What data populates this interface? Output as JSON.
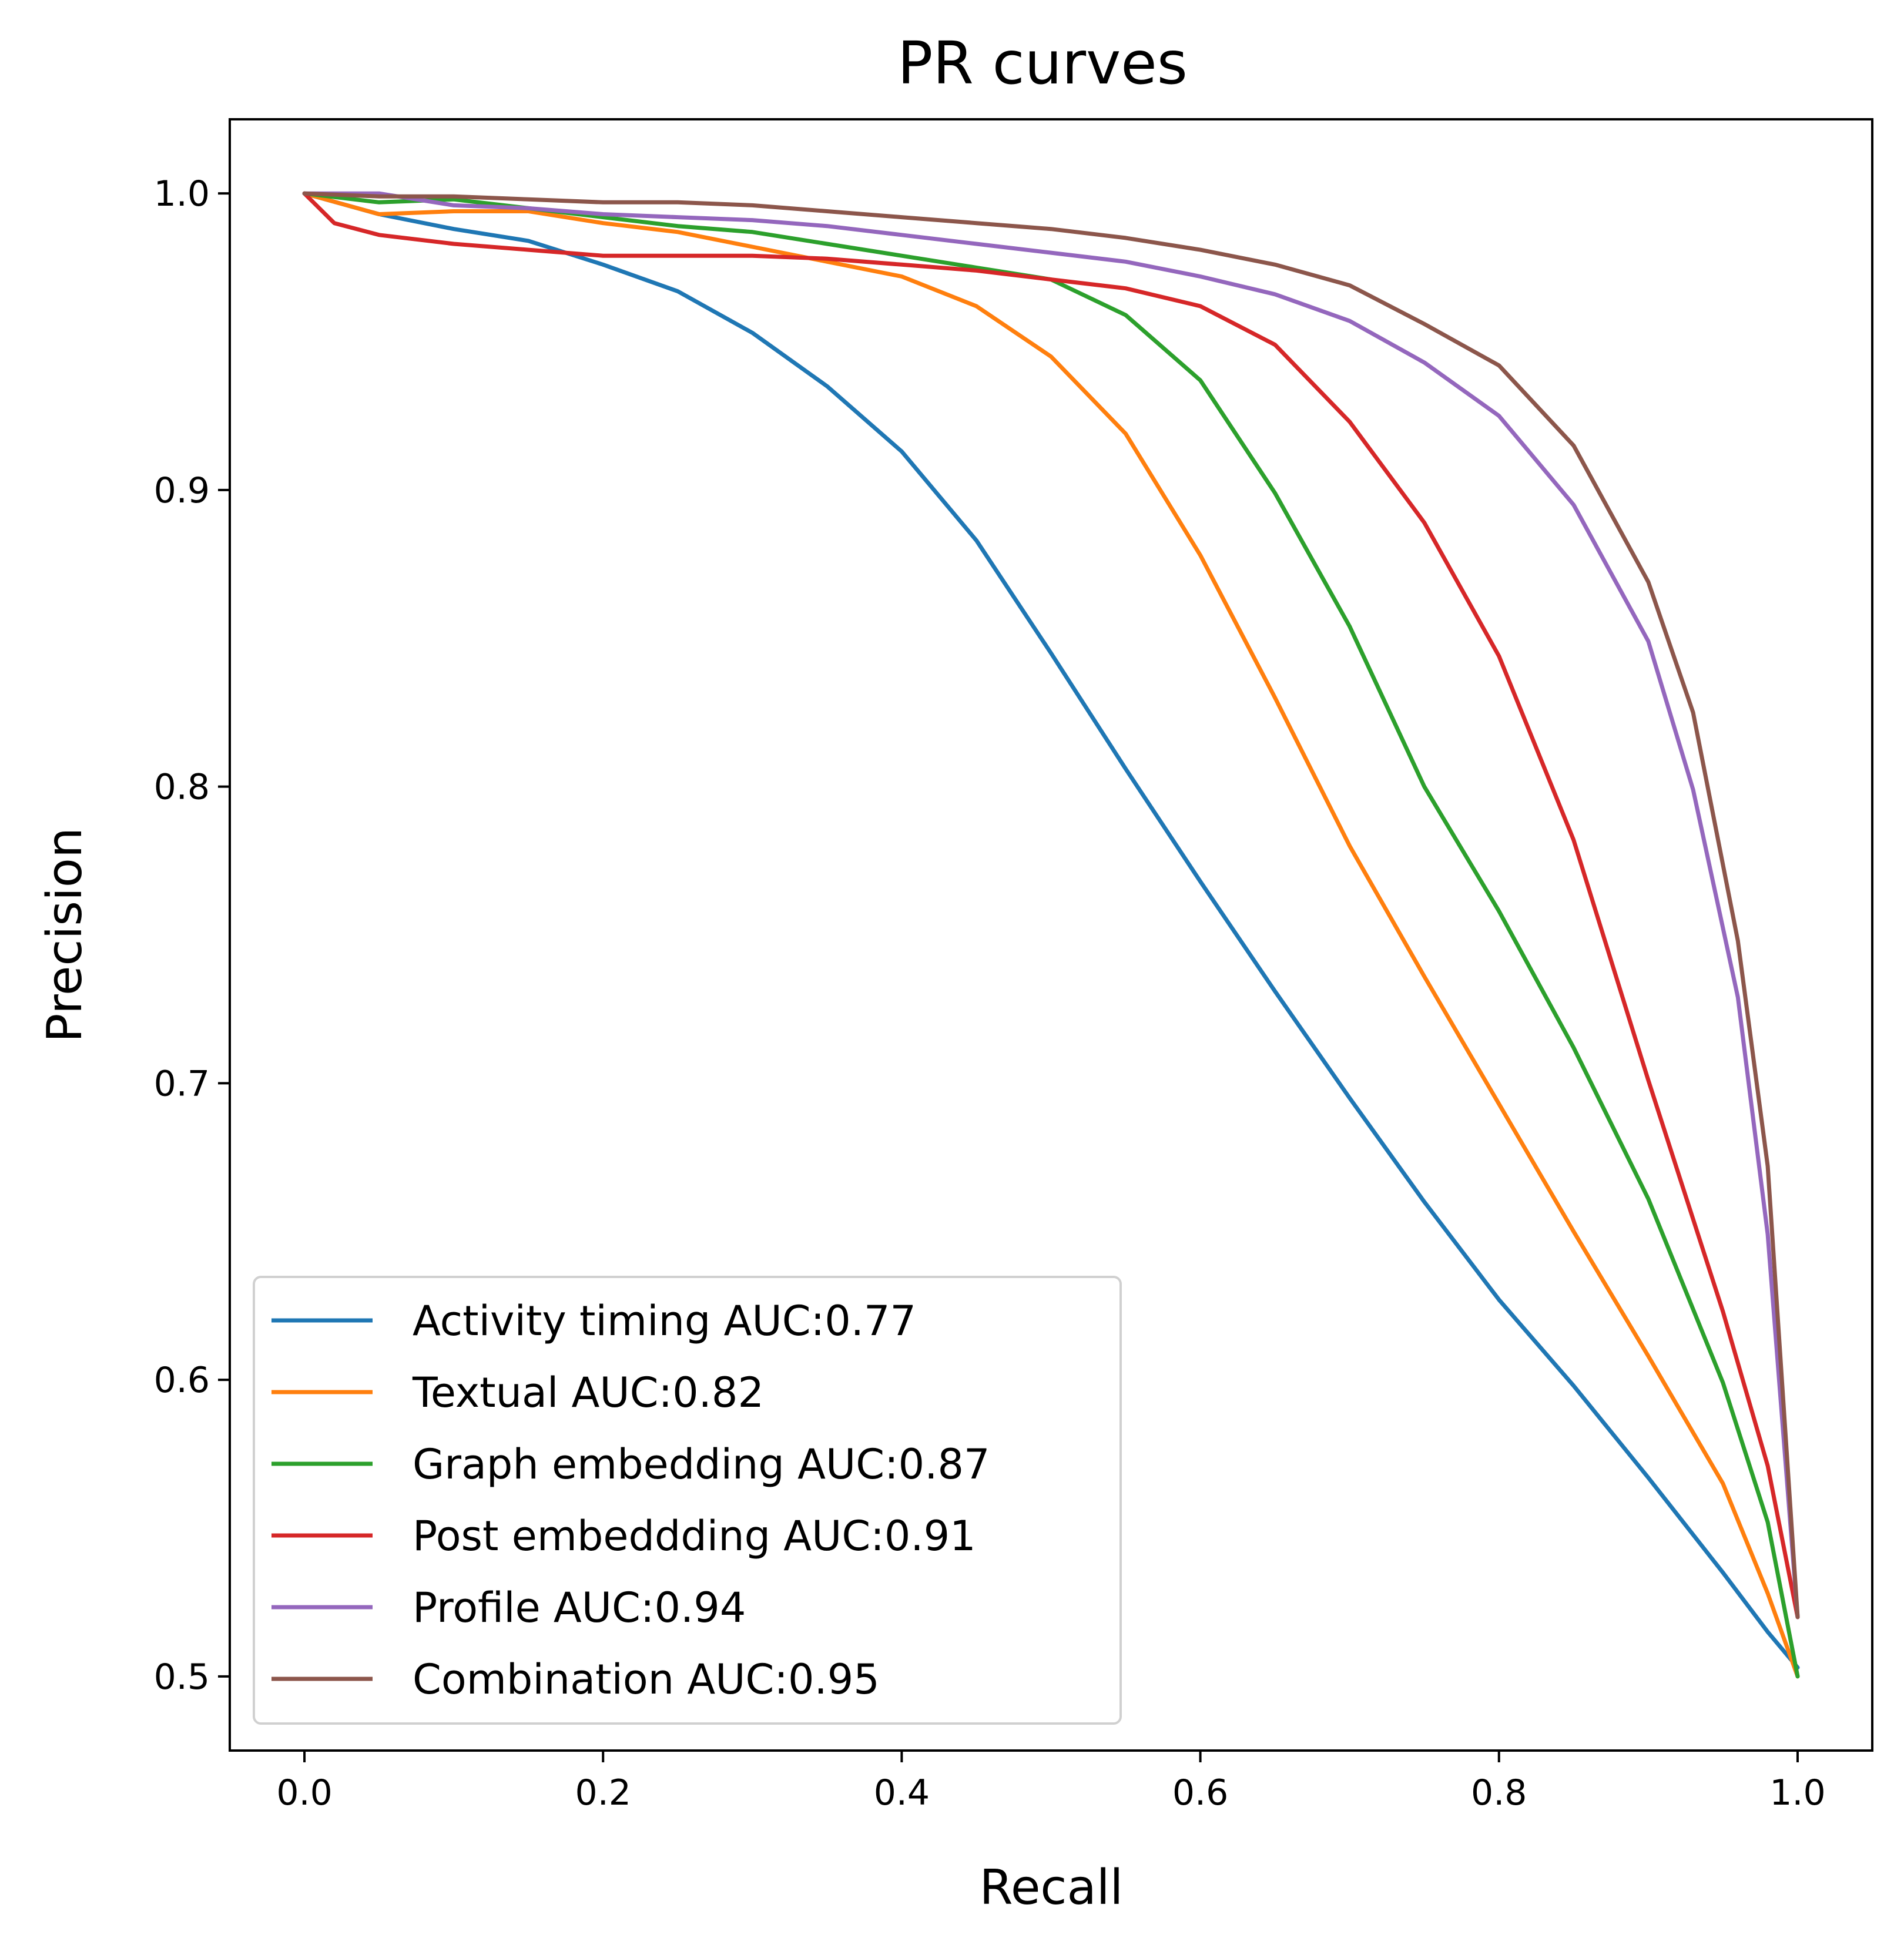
{
  "chart_data": {
    "type": "line",
    "title": "PR curves",
    "xlabel": "Recall",
    "ylabel": "Precision",
    "xlim": [
      -0.05,
      1.05
    ],
    "ylim": [
      0.475,
      1.025
    ],
    "xticks": [
      0.0,
      0.2,
      0.4,
      0.6,
      0.8,
      1.0
    ],
    "xtick_labels": [
      "0.0",
      "0.2",
      "0.4",
      "0.6",
      "0.8",
      "1.0"
    ],
    "yticks": [
      0.5,
      0.6,
      0.7,
      0.8,
      0.9,
      1.0
    ],
    "ytick_labels": [
      "0.5",
      "0.6",
      "0.7",
      "0.8",
      "0.9",
      "1.0"
    ],
    "grid": false,
    "legend_position": "lower-left",
    "series": [
      {
        "name": "Activity timing AUC:0.77",
        "color": "#1f77b4",
        "x": [
          0.0,
          0.05,
          0.1,
          0.15,
          0.2,
          0.25,
          0.3,
          0.35,
          0.4,
          0.45,
          0.5,
          0.55,
          0.6,
          0.65,
          0.7,
          0.75,
          0.8,
          0.85,
          0.9,
          0.95,
          0.98,
          1.0
        ],
        "y": [
          1.0,
          0.993,
          0.988,
          0.984,
          0.976,
          0.967,
          0.953,
          0.935,
          0.913,
          0.883,
          0.845,
          0.806,
          0.768,
          0.731,
          0.695,
          0.66,
          0.627,
          0.598,
          0.567,
          0.535,
          0.515,
          0.503
        ]
      },
      {
        "name": "Textual AUC:0.82",
        "color": "#ff7f0e",
        "x": [
          0.0,
          0.05,
          0.1,
          0.15,
          0.2,
          0.25,
          0.3,
          0.35,
          0.4,
          0.45,
          0.5,
          0.55,
          0.6,
          0.65,
          0.7,
          0.75,
          0.8,
          0.85,
          0.9,
          0.95,
          0.98,
          1.0
        ],
        "y": [
          1.0,
          0.993,
          0.994,
          0.994,
          0.99,
          0.987,
          0.982,
          0.977,
          0.972,
          0.962,
          0.945,
          0.919,
          0.878,
          0.83,
          0.78,
          0.736,
          0.693,
          0.65,
          0.608,
          0.565,
          0.528,
          0.5
        ]
      },
      {
        "name": "Graph embedding AUC:0.87",
        "color": "#2ca02c",
        "x": [
          0.0,
          0.05,
          0.1,
          0.15,
          0.2,
          0.25,
          0.3,
          0.35,
          0.4,
          0.45,
          0.5,
          0.55,
          0.6,
          0.65,
          0.7,
          0.75,
          0.8,
          0.85,
          0.9,
          0.95,
          0.98,
          1.0
        ],
        "y": [
          1.0,
          0.997,
          0.998,
          0.995,
          0.992,
          0.989,
          0.987,
          0.983,
          0.979,
          0.975,
          0.971,
          0.959,
          0.937,
          0.899,
          0.854,
          0.8,
          0.758,
          0.712,
          0.661,
          0.599,
          0.552,
          0.5
        ]
      },
      {
        "name": "Post embeddding AUC:0.91",
        "color": "#d62728",
        "x": [
          0.0,
          0.02,
          0.05,
          0.1,
          0.15,
          0.2,
          0.25,
          0.3,
          0.35,
          0.4,
          0.45,
          0.5,
          0.55,
          0.6,
          0.65,
          0.7,
          0.75,
          0.8,
          0.85,
          0.9,
          0.95,
          0.98,
          1.0
        ],
        "y": [
          1.0,
          0.99,
          0.986,
          0.983,
          0.981,
          0.979,
          0.979,
          0.979,
          0.978,
          0.976,
          0.974,
          0.971,
          0.968,
          0.962,
          0.949,
          0.923,
          0.889,
          0.844,
          0.782,
          0.701,
          0.623,
          0.571,
          0.52
        ]
      },
      {
        "name": "Profile AUC:0.94",
        "color": "#9467bd",
        "x": [
          0.0,
          0.05,
          0.1,
          0.15,
          0.2,
          0.25,
          0.3,
          0.35,
          0.4,
          0.45,
          0.5,
          0.55,
          0.6,
          0.65,
          0.7,
          0.75,
          0.8,
          0.85,
          0.9,
          0.93,
          0.96,
          0.98,
          1.0
        ],
        "y": [
          1.0,
          1.0,
          0.996,
          0.995,
          0.993,
          0.992,
          0.991,
          0.989,
          0.986,
          0.983,
          0.98,
          0.977,
          0.972,
          0.966,
          0.957,
          0.943,
          0.925,
          0.895,
          0.849,
          0.799,
          0.729,
          0.649,
          0.52
        ]
      },
      {
        "name": "Combination AUC:0.95",
        "color": "#8c564b",
        "x": [
          0.0,
          0.05,
          0.1,
          0.15,
          0.2,
          0.25,
          0.3,
          0.35,
          0.4,
          0.45,
          0.5,
          0.55,
          0.6,
          0.65,
          0.7,
          0.75,
          0.8,
          0.85,
          0.9,
          0.93,
          0.96,
          0.98,
          1.0
        ],
        "y": [
          1.0,
          0.999,
          0.999,
          0.998,
          0.997,
          0.997,
          0.996,
          0.994,
          0.992,
          0.99,
          0.988,
          0.985,
          0.981,
          0.976,
          0.969,
          0.956,
          0.942,
          0.915,
          0.869,
          0.825,
          0.748,
          0.672,
          0.52
        ]
      }
    ]
  }
}
